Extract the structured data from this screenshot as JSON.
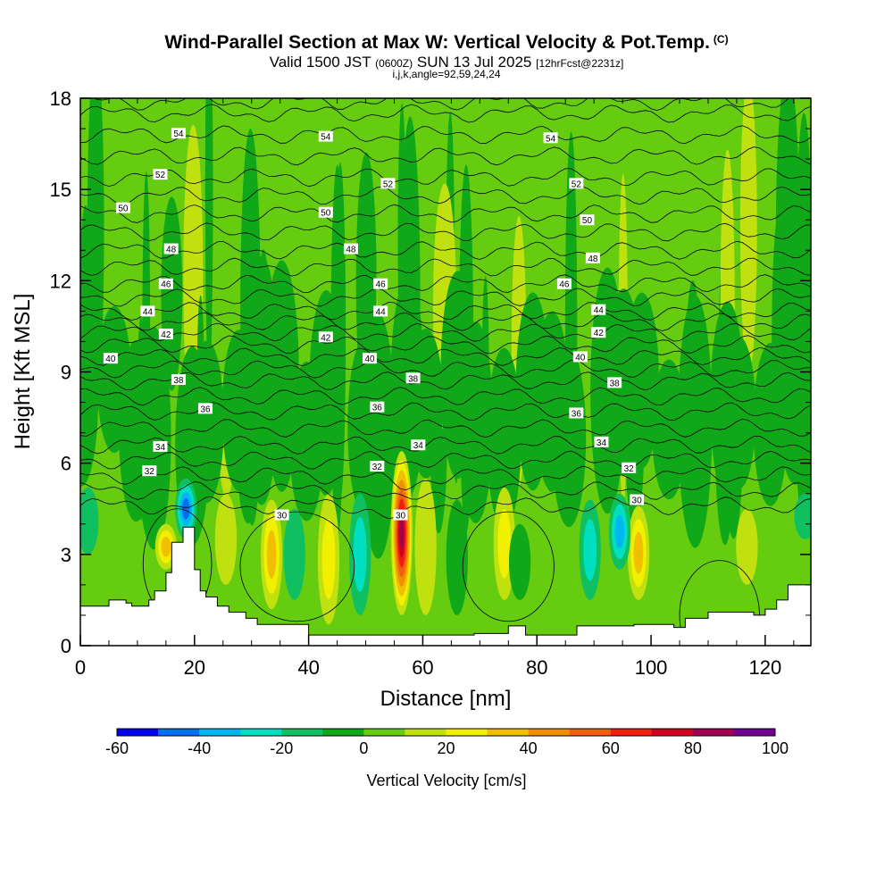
{
  "title": {
    "main": "Wind-Parallel Section at Max W: Vertical Velocity & Pot.Temp.",
    "copyright": "(C)",
    "valid_prefix": "Valid 1500 JST",
    "valid_utc": "(0600Z)",
    "valid_date": "SUN 13 Jul 2025",
    "forecast": "[12hrFcst@2231z]",
    "grid_info": "i,j,k,angle=92,59,24,24"
  },
  "chart_data": {
    "type": "heatmap",
    "xlabel": "Distance [nm]",
    "ylabel": "Height [Kft MSL]",
    "xlim": [
      0,
      128
    ],
    "ylim": [
      0,
      18
    ],
    "x_ticks": [
      0,
      20,
      40,
      60,
      80,
      100,
      120
    ],
    "y_ticks": [
      0,
      3,
      6,
      9,
      12,
      15,
      18
    ],
    "colorbar": {
      "label": "Vertical Velocity [cm/s]",
      "min": -60,
      "max": 100,
      "step": 10,
      "tick_labels": [
        "-60",
        "-40",
        "-20",
        "0",
        "20",
        "40",
        "60",
        "80",
        "100"
      ],
      "tick_values": [
        -60,
        -40,
        -20,
        0,
        20,
        40,
        60,
        80,
        100
      ],
      "colors": [
        "#0000f0",
        "#0070f0",
        "#00b8f0",
        "#00e0c0",
        "#10c060",
        "#10a818",
        "#66cc10",
        "#c0e010",
        "#f0f000",
        "#f0c000",
        "#f09000",
        "#f06010",
        "#f02010",
        "#d00020",
        "#a00050",
        "#700090"
      ]
    },
    "theta_contours_K": [
      30,
      32,
      34,
      36,
      38,
      40,
      42,
      44,
      46,
      48,
      50,
      52,
      54
    ],
    "contour_labels": [
      {
        "v": "54",
        "x": 17.2,
        "y": 16.85
      },
      {
        "v": "54",
        "x": 43.0,
        "y": 16.75
      },
      {
        "v": "54",
        "x": 82.4,
        "y": 16.7
      },
      {
        "v": "52",
        "x": 14.0,
        "y": 15.5
      },
      {
        "v": "52",
        "x": 53.9,
        "y": 15.2
      },
      {
        "v": "52",
        "x": 86.9,
        "y": 15.2
      },
      {
        "v": "50",
        "x": 7.5,
        "y": 14.4
      },
      {
        "v": "50",
        "x": 43.0,
        "y": 14.25
      },
      {
        "v": "50",
        "x": 88.8,
        "y": 14.0
      },
      {
        "v": "48",
        "x": 15.9,
        "y": 13.05
      },
      {
        "v": "48",
        "x": 47.4,
        "y": 13.05
      },
      {
        "v": "48",
        "x": 89.8,
        "y": 12.75
      },
      {
        "v": "46",
        "x": 15.0,
        "y": 11.9
      },
      {
        "v": "46",
        "x": 52.6,
        "y": 11.9
      },
      {
        "v": "46",
        "x": 84.8,
        "y": 11.9
      },
      {
        "v": "44",
        "x": 11.8,
        "y": 11.0
      },
      {
        "v": "44",
        "x": 52.6,
        "y": 11.0
      },
      {
        "v": "44",
        "x": 90.8,
        "y": 11.05
      },
      {
        "v": "42",
        "x": 15.0,
        "y": 10.25
      },
      {
        "v": "42",
        "x": 43.0,
        "y": 10.15
      },
      {
        "v": "42",
        "x": 90.8,
        "y": 10.3
      },
      {
        "v": "40",
        "x": 5.3,
        "y": 9.45
      },
      {
        "v": "40",
        "x": 50.7,
        "y": 9.45
      },
      {
        "v": "40",
        "x": 87.6,
        "y": 9.5
      },
      {
        "v": "38",
        "x": 17.2,
        "y": 8.75
      },
      {
        "v": "38",
        "x": 58.3,
        "y": 8.8
      },
      {
        "v": "38",
        "x": 93.6,
        "y": 8.65
      },
      {
        "v": "36",
        "x": 21.9,
        "y": 7.8
      },
      {
        "v": "36",
        "x": 52.0,
        "y": 7.85
      },
      {
        "v": "36",
        "x": 86.9,
        "y": 7.65
      },
      {
        "v": "34",
        "x": 14.0,
        "y": 6.55
      },
      {
        "v": "34",
        "x": 59.2,
        "y": 6.6
      },
      {
        "v": "34",
        "x": 91.3,
        "y": 6.7
      },
      {
        "v": "32",
        "x": 12.1,
        "y": 5.75
      },
      {
        "v": "32",
        "x": 52.0,
        "y": 5.9
      },
      {
        "v": "32",
        "x": 96.1,
        "y": 5.85
      },
      {
        "v": "30",
        "x": 35.3,
        "y": 4.3
      },
      {
        "v": "30",
        "x": 56.1,
        "y": 4.3
      },
      {
        "v": "30",
        "x": 97.5,
        "y": 4.8
      }
    ],
    "terrain_height_kft": {
      "x": [
        0,
        5,
        8,
        9,
        12,
        13,
        15,
        16,
        18,
        20,
        21,
        22,
        24,
        26,
        29,
        31,
        38,
        40,
        41,
        46,
        62,
        66,
        69,
        75,
        78,
        81,
        87,
        97,
        100,
        104,
        106,
        110,
        118,
        120,
        122,
        124,
        128
      ],
      "y": [
        1.3,
        1.5,
        1.4,
        1.3,
        1.5,
        1.8,
        2.4,
        3.4,
        3.9,
        2.5,
        1.8,
        1.6,
        1.3,
        1.1,
        0.9,
        0.7,
        0.7,
        0.35,
        0.35,
        0.35,
        0.35,
        0.35,
        0.4,
        0.65,
        0.35,
        0.35,
        0.65,
        0.7,
        0.7,
        0.6,
        0.9,
        1.1,
        1.0,
        1.2,
        1.5,
        2.0,
        2.0
      ]
    },
    "vertical_velocity_features": [
      {
        "x": 56.3,
        "y0": 1.0,
        "y1": 6.4,
        "w_cm_s": 85
      },
      {
        "x": 33.5,
        "y0": 1.2,
        "y1": 4.8,
        "w_cm_s": 35
      },
      {
        "x": 43.5,
        "y0": 0.7,
        "y1": 5.0,
        "w_cm_s": 30
      },
      {
        "x": 74.3,
        "y0": 1.5,
        "y1": 5.2,
        "w_cm_s": 30
      },
      {
        "x": 97.8,
        "y0": 1.5,
        "y1": 4.6,
        "w_cm_s": 35
      },
      {
        "x": 15.0,
        "y0": 2.5,
        "y1": 4.0,
        "w_cm_s": 40
      },
      {
        "x": 25.5,
        "y0": 2.0,
        "y1": 5.0,
        "w_cm_s": 20
      },
      {
        "x": 116.8,
        "y0": 2.0,
        "y1": 4.5,
        "w_cm_s": 20
      },
      {
        "x": 60.5,
        "y0": 1.0,
        "y1": 5.5,
        "w_cm_s": 20
      },
      {
        "x": 18.5,
        "y0": 3.5,
        "y1": 5.5,
        "w_cm_s": -50
      },
      {
        "x": 37.5,
        "y0": 1.5,
        "y1": 4.5,
        "w_cm_s": -20
      },
      {
        "x": 49.0,
        "y0": 1.0,
        "y1": 5.0,
        "w_cm_s": -25
      },
      {
        "x": 66.0,
        "y0": 1.0,
        "y1": 4.8,
        "w_cm_s": -10
      },
      {
        "x": 77.0,
        "y0": 1.5,
        "y1": 4.0,
        "w_cm_s": -10
      },
      {
        "x": 89.3,
        "y0": 1.5,
        "y1": 4.8,
        "w_cm_s": -25
      },
      {
        "x": 94.5,
        "y0": 2.5,
        "y1": 5.0,
        "w_cm_s": -40
      },
      {
        "x": 1.3,
        "y0": 3.0,
        "y1": 5.2,
        "w_cm_s": -20
      },
      {
        "x": 127.0,
        "y0": 3.5,
        "y1": 5.0,
        "w_cm_s": -20
      }
    ]
  }
}
